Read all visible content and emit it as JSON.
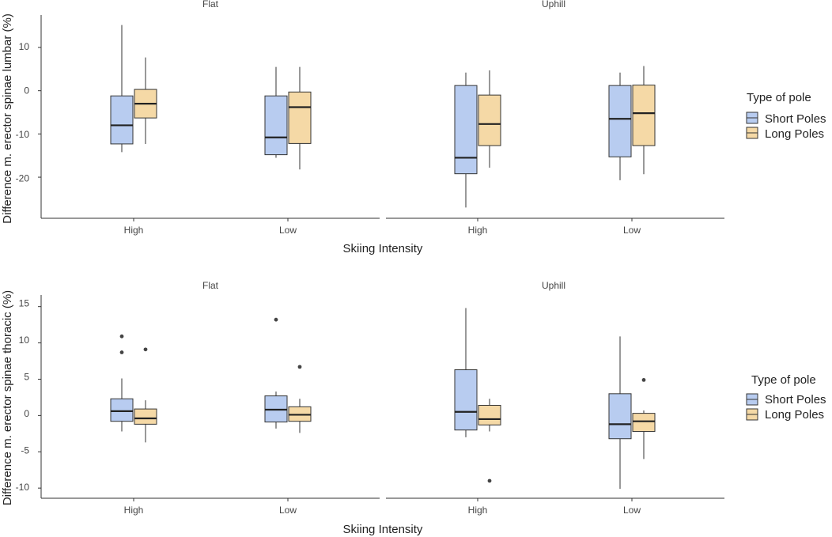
{
  "chart_data": [
    {
      "type": "box",
      "panels": [
        "Flat",
        "Uphill"
      ],
      "categories": [
        "High",
        "Low"
      ],
      "xlabel": "Skiing Intensity",
      "ylabel": "Difference m. erector spinae lumbar (%)",
      "ylim": [
        -29.5,
        17.5
      ],
      "yticks": [
        10,
        0,
        -10,
        -20
      ],
      "ytick_labels": [
        "10",
        "0",
        "-10",
        "-20"
      ],
      "legend": {
        "title": "Type of pole",
        "position": "right",
        "entries": [
          "Short Poles",
          "Long Poles"
        ]
      },
      "series": [
        {
          "name": "Short Poles",
          "color": "#b8ccf0",
          "boxes": [
            {
              "panel": "Flat",
              "category": "High",
              "min": -14.2,
              "q1": -12.3,
              "median": -8.0,
              "q3": -1.2,
              "max": 15.2,
              "outliers": []
            },
            {
              "panel": "Flat",
              "category": "Low",
              "min": -15.5,
              "q1": -14.8,
              "median": -10.8,
              "q3": -1.2,
              "max": 5.5,
              "outliers": []
            },
            {
              "panel": "Uphill",
              "category": "High",
              "min": -27.0,
              "q1": -19.2,
              "median": -15.5,
              "q3": 1.2,
              "max": 4.2,
              "outliers": []
            },
            {
              "panel": "Uphill",
              "category": "Low",
              "min": -20.7,
              "q1": -15.3,
              "median": -6.5,
              "q3": 1.2,
              "max": 4.2,
              "outliers": []
            }
          ]
        },
        {
          "name": "Long Poles",
          "color": "#f5d9a6",
          "boxes": [
            {
              "panel": "Flat",
              "category": "High",
              "min": -12.3,
              "q1": -6.3,
              "median": -3.0,
              "q3": 0.3,
              "max": 7.7,
              "outliers": []
            },
            {
              "panel": "Flat",
              "category": "Low",
              "min": -18.2,
              "q1": -12.2,
              "median": -3.8,
              "q3": -0.3,
              "max": 5.5,
              "outliers": []
            },
            {
              "panel": "Uphill",
              "category": "High",
              "min": -17.8,
              "q1": -12.7,
              "median": -7.7,
              "q3": -1.0,
              "max": 4.7,
              "outliers": []
            },
            {
              "panel": "Uphill",
              "category": "Low",
              "min": -19.3,
              "q1": -12.7,
              "median": -5.2,
              "q3": 1.3,
              "max": 5.7,
              "outliers": []
            }
          ]
        }
      ]
    },
    {
      "type": "box",
      "panels": [
        "Flat",
        "Uphill"
      ],
      "categories": [
        "High",
        "Low"
      ],
      "xlabel": "Skiing Intensity",
      "ylabel": "Difference m. erector spinae thoracic (%)",
      "ylim": [
        -11.4,
        16.6
      ],
      "yticks": [
        15,
        10,
        5,
        0,
        -5,
        -10
      ],
      "ytick_labels": [
        "15",
        "10",
        "5",
        "0",
        "-5",
        "-10"
      ],
      "legend": {
        "title": "Type of pole",
        "position": "right",
        "entries": [
          "Short Poles",
          "Long Poles"
        ]
      },
      "series": [
        {
          "name": "Short Poles",
          "color": "#b8ccf0",
          "boxes": [
            {
              "panel": "Flat",
              "category": "High",
              "min": -2.2,
              "q1": -0.8,
              "median": 0.6,
              "q3": 2.3,
              "max": 5.1,
              "outliers": [
                10.9,
                8.7
              ]
            },
            {
              "panel": "Flat",
              "category": "Low",
              "min": -1.8,
              "q1": -0.9,
              "median": 0.8,
              "q3": 2.7,
              "max": 3.3,
              "outliers": [
                13.2
              ]
            },
            {
              "panel": "Uphill",
              "category": "High",
              "min": -3.0,
              "q1": -2.0,
              "median": 0.5,
              "q3": 6.3,
              "max": 14.8,
              "outliers": []
            },
            {
              "panel": "Uphill",
              "category": "Low",
              "min": -10.1,
              "q1": -3.2,
              "median": -1.2,
              "q3": 3.0,
              "max": 10.9,
              "outliers": []
            }
          ]
        },
        {
          "name": "Long Poles",
          "color": "#f5d9a6",
          "boxes": [
            {
              "panel": "Flat",
              "category": "High",
              "min": -3.7,
              "q1": -1.2,
              "median": -0.4,
              "q3": 0.9,
              "max": 2.1,
              "outliers": [
                9.1
              ]
            },
            {
              "panel": "Flat",
              "category": "Low",
              "min": -2.4,
              "q1": -0.8,
              "median": 0.1,
              "q3": 1.2,
              "max": 2.3,
              "outliers": [
                6.7
              ]
            },
            {
              "panel": "Uphill",
              "category": "High",
              "min": -2.2,
              "q1": -1.3,
              "median": -0.5,
              "q3": 1.4,
              "max": 2.3,
              "outliers": [
                -9.0
              ]
            },
            {
              "panel": "Uphill",
              "category": "Low",
              "min": -6.0,
              "q1": -2.2,
              "median": -0.8,
              "q3": 0.3,
              "max": 0.7,
              "outliers": [
                4.9
              ]
            }
          ]
        }
      ]
    }
  ]
}
